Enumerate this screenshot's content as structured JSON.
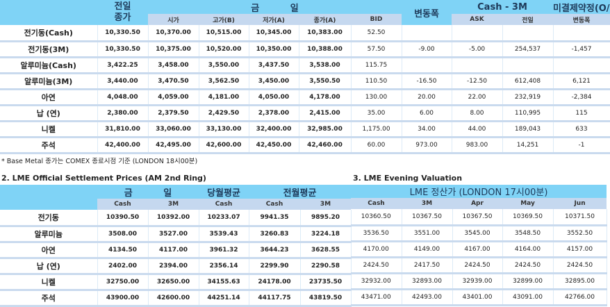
{
  "colors": {
    "header": "#7fd3f6",
    "subheader": "#c5d8ef",
    "row_divider": "#c9daee"
  },
  "top": {
    "headers": {
      "prev": "전일",
      "prev2": "종가",
      "today": "금 일",
      "change": "변동폭",
      "cash3m": "Cash - 3M",
      "oi": "미결제약정(O/I)"
    },
    "sub": [
      "시가",
      "고가(B)",
      "저가(A)",
      "종가(A)",
      "BID",
      "ASK",
      "전일",
      "변동폭"
    ],
    "rows": [
      [
        "전기동(Cash)",
        "10,330.50",
        "10,370.00",
        "10,515.00",
        "10,345.00",
        "10,383.00",
        "52.50",
        "",
        "",
        "",
        ""
      ],
      [
        "전기동(3M)",
        "10,330.50",
        "10,375.00",
        "10,520.00",
        "10,350.00",
        "10,388.00",
        "57.50",
        "-9.00",
        "-5.00",
        "254,537",
        "-1,457"
      ],
      [
        "알루미늄(Cash)",
        "3,422.25",
        "3,458.00",
        "3,550.00",
        "3,437.50",
        "3,538.00",
        "115.75",
        "",
        "",
        "",
        ""
      ],
      [
        "알루미늄(3M)",
        "3,440.00",
        "3,470.50",
        "3,562.50",
        "3,450.00",
        "3,550.50",
        "110.50",
        "-16.50",
        "-12.50",
        "612,408",
        "6,121"
      ],
      [
        "아연",
        "4,048.00",
        "4,059.00",
        "4,181.00",
        "4,050.00",
        "4,178.00",
        "130.00",
        "20.00",
        "22.00",
        "232,919",
        "-2,384"
      ],
      [
        "납 (연)",
        "2,380.00",
        "2,379.50",
        "2,429.50",
        "2,378.00",
        "2,415.00",
        "35.00",
        "6.00",
        "8.00",
        "110,995",
        "115"
      ],
      [
        "니켈",
        "31,810.00",
        "33,060.00",
        "33,130.00",
        "32,400.00",
        "32,985.00",
        "1,175.00",
        "34.00",
        "44.00",
        "189,043",
        "633"
      ],
      [
        "주석",
        "42,400.00",
        "42,495.00",
        "42,600.00",
        "42,450.00",
        "42,460.00",
        "60.00",
        "973.00",
        "983.00",
        "14,251",
        "-1"
      ]
    ],
    "note": "* Base Metal 종가는 COMEX 종료시점 기준 (LONDON 18시00분)"
  },
  "settlement": {
    "title": "2. LME Official Settlement Prices (AM 2nd Ring)",
    "headers": {
      "today": "금 일",
      "this_month": "당월평균",
      "last_month": "전월평균"
    },
    "sub": [
      "Cash",
      "3M",
      "Cash",
      "Cash",
      "3M"
    ],
    "rows": [
      [
        "전기동",
        "10390.50",
        "10392.00",
        "10233.07",
        "9941.35",
        "9895.20"
      ],
      [
        "알루미늄",
        "3508.00",
        "3527.00",
        "3539.43",
        "3260.83",
        "3224.18"
      ],
      [
        "아연",
        "4134.50",
        "4117.00",
        "3961.32",
        "3644.23",
        "3628.55"
      ],
      [
        "납 (연)",
        "2402.00",
        "2394.00",
        "2356.14",
        "2299.90",
        "2290.58"
      ],
      [
        "니켈",
        "32750.00",
        "32650.00",
        "34155.63",
        "24178.00",
        "23735.50"
      ],
      [
        "주석",
        "43900.00",
        "42600.00",
        "44251.14",
        "44117.75",
        "43819.50"
      ]
    ]
  },
  "evening": {
    "title": "3. LME Evening Valuation",
    "header": "LME 정산가 (LONDON 17시00분)",
    "sub": [
      "Cash",
      "3M",
      "Apr",
      "May",
      "Jun"
    ],
    "rows": [
      [
        "10360.50",
        "10367.50",
        "10367.50",
        "10369.50",
        "10371.50"
      ],
      [
        "3536.50",
        "3551.00",
        "3545.00",
        "3548.50",
        "3552.50"
      ],
      [
        "4170.00",
        "4149.00",
        "4167.00",
        "4164.00",
        "4157.00"
      ],
      [
        "2424.50",
        "2417.50",
        "2424.50",
        "2424.50",
        "2424.50"
      ],
      [
        "32932.00",
        "32893.00",
        "32939.00",
        "32899.00",
        "32895.00"
      ],
      [
        "43471.00",
        "42493.00",
        "43401.00",
        "43091.00",
        "42766.00"
      ]
    ]
  }
}
